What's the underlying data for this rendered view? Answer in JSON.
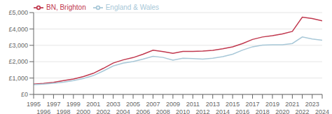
{
  "chart_data": {
    "type": "line",
    "x": [
      1995,
      1996,
      1997,
      1998,
      1999,
      2000,
      2001,
      2002,
      2003,
      2004,
      2005,
      2006,
      2007,
      2008,
      2009,
      2010,
      2011,
      2012,
      2013,
      2014,
      2015,
      2016,
      2017,
      2018,
      2019,
      2020,
      2021,
      2022,
      2023,
      2024
    ],
    "series": [
      {
        "name": "BN, Brighton",
        "color": "#c0384e",
        "values": [
          630,
          670,
          740,
          840,
          940,
          1090,
          1290,
          1590,
          1920,
          2110,
          2250,
          2460,
          2700,
          2620,
          2510,
          2630,
          2630,
          2650,
          2690,
          2790,
          2910,
          3110,
          3360,
          3510,
          3590,
          3700,
          3850,
          4720,
          4640,
          4500
        ]
      },
      {
        "name": "England & Wales",
        "color": "#a8c8d8",
        "values": [
          595,
          635,
          685,
          745,
          840,
          975,
          1150,
          1430,
          1740,
          1910,
          2010,
          2160,
          2330,
          2260,
          2090,
          2210,
          2190,
          2160,
          2210,
          2310,
          2460,
          2710,
          2910,
          3010,
          3030,
          3030,
          3110,
          3510,
          3390,
          3310
        ]
      }
    ],
    "xlim": [
      1995,
      2024
    ],
    "ylim": [
      0,
      5000
    ],
    "xticks": [
      1995,
      1996,
      1997,
      1998,
      1999,
      2000,
      2001,
      2002,
      2003,
      2004,
      2005,
      2006,
      2007,
      2008,
      2009,
      2010,
      2011,
      2012,
      2013,
      2014,
      2015,
      2016,
      2017,
      2018,
      2019,
      2020,
      2021,
      2022,
      2023,
      2024
    ],
    "yticks": [
      {
        "value": 0,
        "label": "£0"
      },
      {
        "value": 1000,
        "label": "£1,000"
      },
      {
        "value": 2000,
        "label": "£2,000"
      },
      {
        "value": 3000,
        "label": "£3,000"
      },
      {
        "value": 4000,
        "label": "£4,000"
      },
      {
        "value": 5000,
        "label": "£5,000"
      }
    ],
    "grid": true,
    "legend": "upper left"
  }
}
